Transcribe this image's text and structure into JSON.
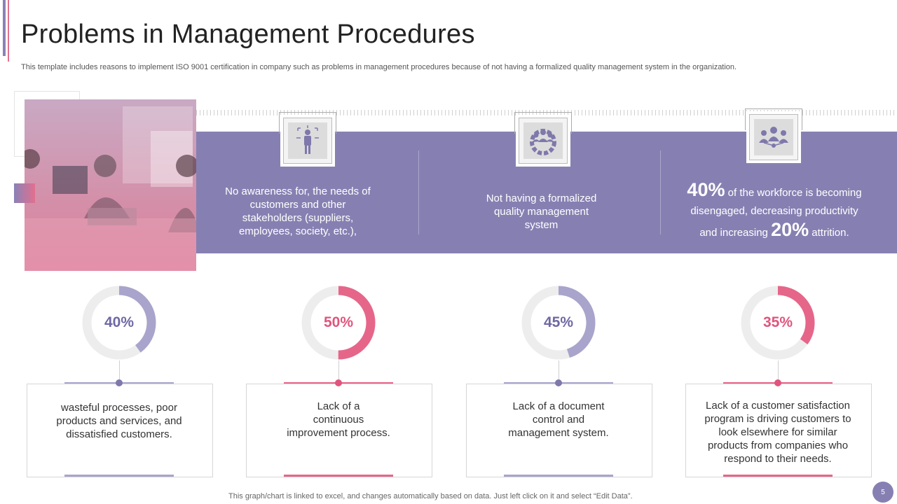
{
  "header": {
    "title": "Problems in Management Procedures",
    "subtitle": "This template includes reasons to implement ISO 9001 certification in company such as problems in management procedures because of not having a formalized quality management system in the organization."
  },
  "band": {
    "col1": {
      "icon": "person-arrows-icon",
      "line1": "No awareness for, the needs of",
      "line2": "customers and other",
      "line3": "stakeholders (suppliers,",
      "line4": "employees, society, etc.),"
    },
    "col2": {
      "icon": "team-gear-icon",
      "line1": "Not having a formalized",
      "line2": "quality management",
      "line3": "system"
    },
    "col3": {
      "icon": "team-network-icon",
      "big1": "40%",
      "text1": "of the workforce is becoming",
      "text2": "disengaged, decreasing productivity",
      "text3": "and increasing",
      "big2": "20%",
      "text4": "attrition."
    }
  },
  "metrics": [
    {
      "label": "40%",
      "value": 40,
      "color": "#a9a4cb",
      "text_color": "#6f68a3",
      "lines": [
        "wasteful processes, poor",
        "products and services, and",
        "dissatisfied customers."
      ]
    },
    {
      "label": "50%",
      "value": 50,
      "color": "#e6668a",
      "text_color": "#e0557d",
      "lines": [
        "Lack of a",
        "continuous",
        "improvement process."
      ]
    },
    {
      "label": "45%",
      "value": 45,
      "color": "#a9a4cb",
      "text_color": "#6f68a3",
      "lines": [
        "Lack of a document",
        "control and",
        "management system."
      ]
    },
    {
      "label": "35%",
      "value": 35,
      "color": "#e6668a",
      "text_color": "#e0557d",
      "lines": [
        "Lack of a customer satisfaction",
        "program is driving customers to",
        "look elsewhere for similar",
        "products from companies who",
        "respond to their needs."
      ]
    }
  ],
  "footer": {
    "note": "This graph/chart is linked to excel,  and changes automatically based on data. Just left click on it and select “Edit Data”.",
    "page": "5"
  }
}
